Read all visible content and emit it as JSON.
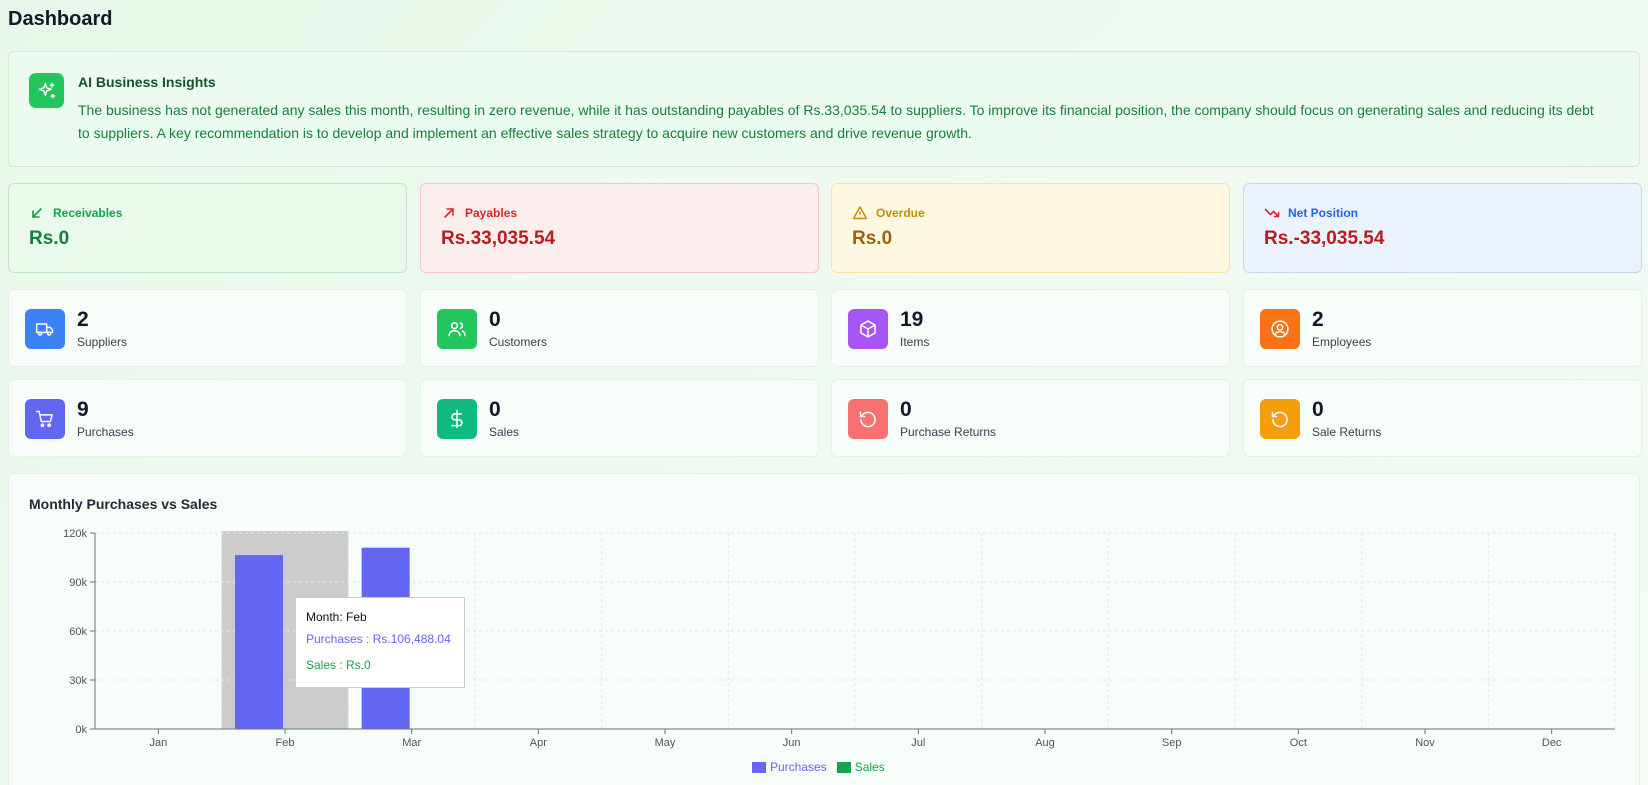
{
  "page_title": "Dashboard",
  "ai": {
    "title": "AI Business Insights",
    "text": "The business has not generated any sales this month, resulting in zero revenue, while it has outstanding payables of Rs.33,035.54 to suppliers. To improve its financial position, the company should focus on generating sales and reducing its debt to suppliers. A key recommendation is to develop and implement an effective sales strategy to acquire new customers and drive revenue growth."
  },
  "kpis": [
    {
      "label": "Receivables",
      "value": "Rs.0",
      "color": "#16a34a",
      "icon": "arrow-down-left-icon"
    },
    {
      "label": "Payables",
      "value": "Rs.33,035.54",
      "color": "#dc2626",
      "icon": "arrow-up-right-icon"
    },
    {
      "label": "Overdue",
      "value": "Rs.0",
      "color": "#ca8a04",
      "icon": "warning-icon"
    },
    {
      "label": "Net Position",
      "value": "Rs.-33,035.54",
      "color": "#2563eb",
      "value_color": "#b91c1c",
      "icon": "trending-down-icon"
    }
  ],
  "stats": [
    {
      "value": "2",
      "label": "Suppliers",
      "color": "#3b82f6",
      "icon": "truck-icon"
    },
    {
      "value": "0",
      "label": "Customers",
      "color": "#22c55e",
      "icon": "users-icon"
    },
    {
      "value": "19",
      "label": "Items",
      "color": "#a855f7",
      "icon": "box-icon"
    },
    {
      "value": "2",
      "label": "Employees",
      "color": "#f97316",
      "icon": "user-circle-icon"
    },
    {
      "value": "9",
      "label": "Purchases",
      "color": "#6366f1",
      "icon": "cart-icon"
    },
    {
      "value": "0",
      "label": "Sales",
      "color": "#10b981",
      "icon": "dollar-icon"
    },
    {
      "value": "0",
      "label": "Purchase Returns",
      "color": "#f87171",
      "icon": "rotate-ccw-icon"
    },
    {
      "value": "0",
      "label": "Sale Returns",
      "color": "#f59e0b",
      "icon": "rotate-cw-icon"
    }
  ],
  "chart_title": "Monthly Purchases vs Sales",
  "chart_data": {
    "type": "bar",
    "categories": [
      "Jan",
      "Feb",
      "Mar",
      "Apr",
      "May",
      "Jun",
      "Jul",
      "Aug",
      "Sep",
      "Oct",
      "Nov",
      "Dec"
    ],
    "series": [
      {
        "name": "Purchases",
        "color": "#6366f1",
        "values": [
          0,
          106488.04,
          111000,
          0,
          0,
          0,
          0,
          0,
          0,
          0,
          0,
          0
        ]
      },
      {
        "name": "Sales",
        "color": "#16a34a",
        "values": [
          0,
          0,
          0,
          0,
          0,
          0,
          0,
          0,
          0,
          0,
          0,
          0
        ]
      }
    ],
    "ylim": [
      0,
      120000
    ],
    "yticks": [
      "0k",
      "30k",
      "60k",
      "90k",
      "120k"
    ],
    "ytick_values": [
      0,
      30000,
      60000,
      90000,
      120000
    ],
    "grid": true,
    "legend": "bottom-center",
    "highlight_category": "Feb"
  },
  "tooltip": {
    "month": "Month: Feb",
    "purchases": "Purchases : Rs.106,488.04",
    "sales": "Sales : Rs.0"
  }
}
